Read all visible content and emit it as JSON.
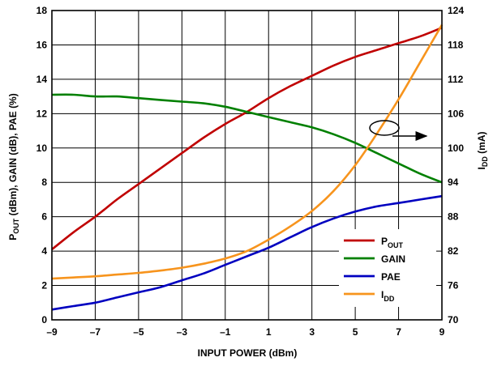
{
  "chart_data": {
    "type": "line",
    "xlabel": "INPUT POWER (dBm)",
    "ylabel": {
      "p": "P",
      "p_sub": "OUT",
      "rest": " (dBm), GAIN (dB), PAE (%)"
    },
    "y2label": {
      "i": "I",
      "i_sub": "DD",
      "rest": " (mA)"
    },
    "xlim": [
      -9,
      9
    ],
    "ylim": [
      0,
      18
    ],
    "y2lim": [
      70,
      124
    ],
    "xticks": [
      -9,
      -7,
      -5,
      -3,
      -1,
      1,
      3,
      5,
      7,
      9
    ],
    "xtick_labels": [
      "–9",
      "–7",
      "–5",
      "–3",
      "–1",
      "1",
      "3",
      "5",
      "7",
      "9"
    ],
    "yticks": [
      0,
      2,
      4,
      6,
      8,
      10,
      12,
      14,
      16,
      18
    ],
    "ytick_labels": [
      "0",
      "2",
      "4",
      "6",
      "8",
      "10",
      "12",
      "14",
      "16",
      "18"
    ],
    "y2ticks": [
      70,
      76,
      82,
      88,
      94,
      100,
      106,
      112,
      118,
      124
    ],
    "y2tick_labels": [
      "70",
      "76",
      "82",
      "88",
      "94",
      "100",
      "106",
      "112",
      "118",
      "124"
    ],
    "grid": true,
    "legend_position": "bottom-right",
    "series": [
      {
        "name": "P",
        "name_sub": "OUT",
        "color": "#c00000",
        "axis": "left",
        "x": [
          -9,
          -8,
          -7,
          -6,
          -5,
          -4,
          -3,
          -2,
          -1,
          0,
          1,
          2,
          3,
          4,
          5,
          6,
          7,
          8,
          9
        ],
        "y": [
          4.1,
          5.1,
          6.0,
          7.0,
          7.9,
          8.8,
          9.7,
          10.6,
          11.4,
          12.1,
          12.9,
          13.6,
          14.2,
          14.8,
          15.3,
          15.7,
          16.1,
          16.5,
          17.0
        ]
      },
      {
        "name": "GAIN",
        "color": "#008000",
        "axis": "left",
        "x": [
          -9,
          -8,
          -7,
          -6,
          -5,
          -4,
          -3,
          -2,
          -1,
          0,
          1,
          2,
          3,
          4,
          5,
          6,
          7,
          8,
          9
        ],
        "y": [
          13.1,
          13.1,
          13.0,
          13.0,
          12.9,
          12.8,
          12.7,
          12.6,
          12.4,
          12.1,
          11.8,
          11.5,
          11.2,
          10.8,
          10.3,
          9.7,
          9.1,
          8.5,
          8.0
        ]
      },
      {
        "name": "PAE",
        "color": "#0000c0",
        "axis": "left",
        "x": [
          -9,
          -8,
          -7,
          -6,
          -5,
          -4,
          -3,
          -2,
          -1,
          0,
          1,
          2,
          3,
          4,
          5,
          6,
          7,
          8,
          9
        ],
        "y": [
          0.6,
          0.8,
          1.0,
          1.3,
          1.6,
          1.9,
          2.3,
          2.7,
          3.2,
          3.7,
          4.2,
          4.8,
          5.4,
          5.9,
          6.3,
          6.6,
          6.8,
          7.0,
          7.2
        ]
      },
      {
        "name": "I",
        "name_sub": "DD",
        "color": "#f7941d",
        "axis": "right",
        "x": [
          -9,
          -8,
          -7,
          -6,
          -5,
          -4,
          -3,
          -2,
          -1,
          0,
          1,
          2,
          3,
          4,
          5,
          6,
          7,
          8,
          9
        ],
        "y": [
          77.2,
          77.4,
          77.6,
          77.9,
          78.2,
          78.6,
          79.1,
          79.8,
          80.7,
          82.0,
          84.0,
          86.3,
          89.0,
          92.5,
          97.0,
          102.5,
          108.5,
          115.0,
          121.5
        ]
      }
    ]
  }
}
